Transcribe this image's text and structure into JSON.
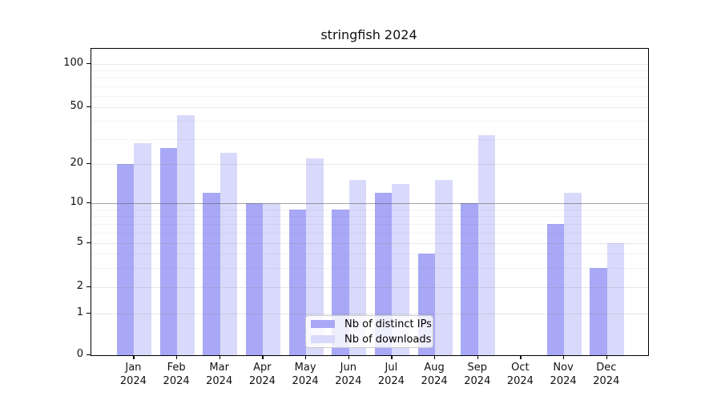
{
  "title": "stringfish 2024",
  "chart_data": {
    "type": "bar",
    "title": "stringfish 2024",
    "categories": [
      "Jan 2024",
      "Feb 2024",
      "Mar 2024",
      "Apr 2024",
      "May 2024",
      "Jun 2024",
      "Jul 2024",
      "Aug 2024",
      "Sep 2024",
      "Oct 2024",
      "Nov 2024",
      "Dec 2024"
    ],
    "months": [
      "Jan",
      "Feb",
      "Mar",
      "Apr",
      "May",
      "Jun",
      "Jul",
      "Aug",
      "Sep",
      "Oct",
      "Nov",
      "Dec"
    ],
    "year": "2024",
    "series": [
      {
        "name": "Nb of distinct IPs",
        "color": "#a8a8f6",
        "values": [
          20,
          26,
          12,
          10,
          9,
          9,
          12,
          4,
          10,
          0,
          7,
          3
        ]
      },
      {
        "name": "Nb of downloads",
        "color": "#d9d9fb",
        "values": [
          28,
          44,
          24,
          10,
          22,
          15,
          14,
          15,
          32,
          0,
          12,
          5
        ]
      }
    ],
    "xlabel": "",
    "ylabel": "",
    "yscale": "log-like",
    "ylim": [
      0,
      130
    ],
    "y_ticks": [
      0,
      1,
      2,
      5,
      10,
      20,
      50,
      100
    ],
    "y_minor_ticks": [
      3,
      4,
      6,
      7,
      8,
      9,
      30,
      40,
      60,
      70,
      80,
      90
    ],
    "emphasized_gridline": 10,
    "grid": "on",
    "legend_position": "bottom-center",
    "colors": {
      "axis": "#000000",
      "major_grid": "#dedede",
      "minor_grid": "#f0f0f0",
      "emph_grid": "#b3b3b3",
      "background": "#ffffff"
    }
  }
}
